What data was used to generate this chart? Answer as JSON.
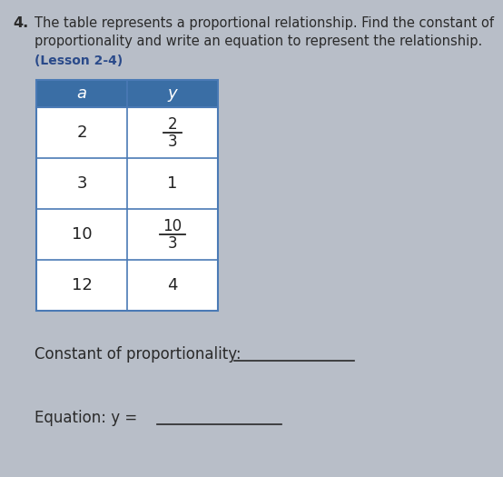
{
  "problem_number": "4.",
  "title_line1": "The table represents a proportional relationship. Find the constant of",
  "title_line2": "proportionality and write an equation to represent the relationship.",
  "lesson_label": "(Lesson 2-4)",
  "col_headers": [
    "a",
    "y"
  ],
  "rows_display": [
    [
      "2",
      "2/3"
    ],
    [
      "3",
      "1"
    ],
    [
      "10",
      "10/3"
    ],
    [
      "12",
      "4"
    ]
  ],
  "constant_label": "Constant of proportionality:",
  "equation_label": "Equation: y =",
  "header_bg": "#3a6ea5",
  "header_text_color": "#ffffff",
  "table_border_color": "#4a7ab5",
  "cell_text_color": "#222222",
  "background_color": "#b8bec8",
  "title_color": "#2a2a2a",
  "lesson_color": "#2a4a8a",
  "figsize": [
    5.54,
    5.25
  ],
  "dpi": 100
}
